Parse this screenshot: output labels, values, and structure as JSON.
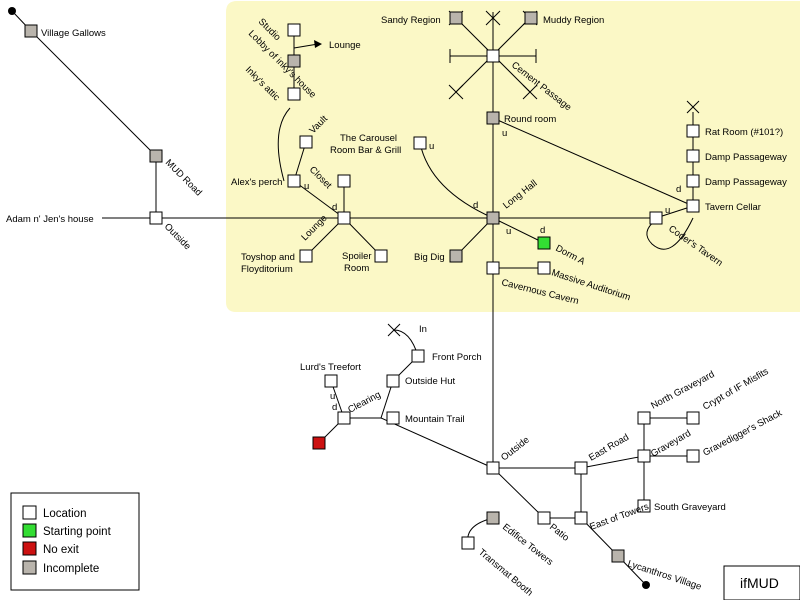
{
  "colors": {
    "region": "#fbf8c6",
    "location": "#ffffff",
    "start": "#33dd33",
    "noexit": "#cc1111",
    "incomplete": "#b9b4ac",
    "stroke": "#000000"
  },
  "brand": "ifMUD",
  "legend": [
    {
      "label": "Location",
      "kind": "location"
    },
    {
      "label": "Starting point",
      "kind": "start"
    },
    {
      "label": "No exit",
      "kind": "noexit"
    },
    {
      "label": "Incomplete",
      "kind": "incomplete"
    }
  ],
  "rooms": {
    "village_gallows": {
      "label": "Village Gallows",
      "kind": "incomplete"
    },
    "mud_road": {
      "label": "MUD Road",
      "kind": "incomplete"
    },
    "outside_w": {
      "label": "Outside",
      "kind": "location"
    },
    "adam_jen": {
      "label": "Adam n' Jen's house"
    },
    "studio": {
      "label": "Studio",
      "kind": "location"
    },
    "lobby_inky": {
      "label": "Lobby of inky's house",
      "kind": "incomplete"
    },
    "inky_attic": {
      "label": "Inky's attic",
      "kind": "location"
    },
    "lounge_arrow": {
      "label": "Lounge"
    },
    "vault": {
      "label": "Vault",
      "kind": "location"
    },
    "alex_perch": {
      "label": "Alex's perch",
      "kind": "location"
    },
    "closet": {
      "label": "Closet",
      "kind": "location"
    },
    "lounge": {
      "label": "Lounge",
      "kind": "location"
    },
    "toyshop": {
      "label": "Toyshop and Floyditorium",
      "kind": "location"
    },
    "spoiler_room": {
      "label": "Spoiler Room",
      "kind": "location"
    },
    "carousel": {
      "label": "The Carousel Room Bar & Grill",
      "kind": "location"
    },
    "sandy_region": {
      "label": "Sandy Region",
      "kind": "incomplete"
    },
    "muddy_region": {
      "label": "Muddy Region",
      "kind": "incomplete"
    },
    "cement_passage": {
      "label": "Cement Passage",
      "kind": "location"
    },
    "round_room": {
      "label": "Round room",
      "kind": "incomplete"
    },
    "long_hall": {
      "label": "Long Hall",
      "kind": "incomplete"
    },
    "big_dig": {
      "label": "Big Dig",
      "kind": "incomplete"
    },
    "dorm_a": {
      "label": "Dorm A",
      "kind": "start"
    },
    "cavernous_cavern": {
      "label": "Cavernous Cavern",
      "kind": "location"
    },
    "massive_auditorium": {
      "label": "Massive Auditorium",
      "kind": "location"
    },
    "rat_room": {
      "label": "Rat Room (#101?)",
      "kind": "location"
    },
    "damp1": {
      "label": "Damp Passageway",
      "kind": "location"
    },
    "damp2": {
      "label": "Damp Passageway",
      "kind": "location"
    },
    "tavern_cellar": {
      "label": "Tavern Cellar",
      "kind": "location"
    },
    "coders_tavern": {
      "label": "Coder's Tavern",
      "kind": "location"
    },
    "front_porch": {
      "label": "Front Porch",
      "kind": "location"
    },
    "lurds_treefort": {
      "label": "Lurd's Treefort",
      "kind": "location"
    },
    "outside_hut": {
      "label": "Outside Hut",
      "kind": "location"
    },
    "clearing": {
      "label": "Clearing",
      "kind": "location"
    },
    "mountain_trail": {
      "label": "Mountain Trail",
      "kind": "location"
    },
    "noexit_room": {
      "label": "",
      "kind": "noexit"
    },
    "outside_s": {
      "label": "Outside",
      "kind": "location"
    },
    "east_road": {
      "label": "East Road",
      "kind": "location"
    },
    "north_graveyard": {
      "label": "North Graveyard",
      "kind": "location"
    },
    "crypt": {
      "label": "Crypt of IF Misfits",
      "kind": "location"
    },
    "graveyard": {
      "label": "Graveyard",
      "kind": "location"
    },
    "gravedigger": {
      "label": "Gravedigger's Shack",
      "kind": "location"
    },
    "south_graveyard": {
      "label": "South Graveyard",
      "kind": "location"
    },
    "edifice_towers": {
      "label": "Edifice Towers",
      "kind": "incomplete"
    },
    "patio": {
      "label": "Patio",
      "kind": "location"
    },
    "east_towers": {
      "label": "East of Towers",
      "kind": "location"
    },
    "transmat_booth": {
      "label": "Transmat Booth",
      "kind": "location"
    },
    "lycanthros_village": {
      "label": "Lycanthros Village",
      "kind": "incomplete"
    }
  },
  "exit_labels": {
    "alex_u": "u",
    "lounge_d": "d",
    "carousel_u": "u",
    "long_hall_d": "d",
    "long_hall_u": "u",
    "dorm_d": "d",
    "round_u": "u",
    "tavern_d": "d",
    "tavern_u": "u",
    "porch_in": "In",
    "treefort_u": "u",
    "clearing_d": "d"
  }
}
